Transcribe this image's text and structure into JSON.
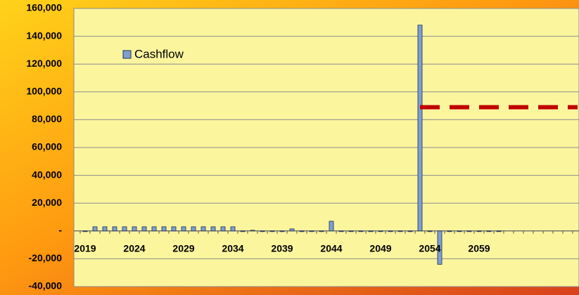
{
  "chart_data": {
    "type": "bar",
    "categories": [
      "2019",
      "2020",
      "2021",
      "2022",
      "2023",
      "2024",
      "2025",
      "2026",
      "2027",
      "2028",
      "2029",
      "2030",
      "2031",
      "2032",
      "2033",
      "2034",
      "2035",
      "2036",
      "2037",
      "2038",
      "2039",
      "2040",
      "2041",
      "2042",
      "2043",
      "2044",
      "2045",
      "2046",
      "2047",
      "2048",
      "2049",
      "2050",
      "2051",
      "2052",
      "2053",
      "2054",
      "2055",
      "2056",
      "2057",
      "2058",
      "2059",
      "2060",
      "2061",
      null,
      null,
      null,
      null,
      null,
      null,
      null,
      null
    ],
    "series": [
      {
        "name": "Cashflow",
        "type": "bar",
        "color": "#7f9fd0",
        "values": [
          0,
          3000,
          3000,
          3000,
          3000,
          3000,
          3000,
          3000,
          3000,
          3000,
          3000,
          3000,
          3000,
          3000,
          3000,
          3000,
          0,
          500,
          0,
          0,
          0,
          1500,
          0,
          0,
          0,
          7000,
          0,
          0,
          0,
          0,
          0,
          0,
          0,
          0,
          148000,
          0,
          -24000,
          0,
          0,
          0,
          0,
          0,
          0,
          null,
          null,
          null,
          null,
          null,
          null,
          null,
          null
        ]
      },
      {
        "type": "line",
        "color": "#c00000",
        "dashed": true,
        "values": [
          null,
          null,
          null,
          null,
          null,
          null,
          null,
          null,
          null,
          null,
          null,
          null,
          null,
          null,
          null,
          null,
          null,
          null,
          null,
          null,
          null,
          null,
          null,
          null,
          null,
          null,
          null,
          null,
          null,
          null,
          null,
          null,
          null,
          null,
          89000,
          89000,
          89000,
          89000,
          89000,
          89000,
          89000,
          89000,
          89000,
          89000,
          89000,
          89000,
          89000,
          89000,
          89000,
          89000,
          89000
        ]
      }
    ],
    "ylim": [
      -40000,
      160000
    ],
    "yticks": [
      {
        "value": -40000,
        "label": "-40,000"
      },
      {
        "value": -20000,
        "label": "-20,000"
      },
      {
        "value": 0,
        "label": "-"
      },
      {
        "value": 20000,
        "label": "20,000"
      },
      {
        "value": 40000,
        "label": "40,000"
      },
      {
        "value": 60000,
        "label": "60,000"
      },
      {
        "value": 80000,
        "label": "80,000"
      },
      {
        "value": 100000,
        "label": "100,000"
      },
      {
        "value": 120000,
        "label": "120,000"
      },
      {
        "value": 140000,
        "label": "140,000"
      },
      {
        "value": 160000,
        "label": "160,000"
      }
    ],
    "x_label_interval": 5,
    "grid": true,
    "legend": "upper left"
  }
}
